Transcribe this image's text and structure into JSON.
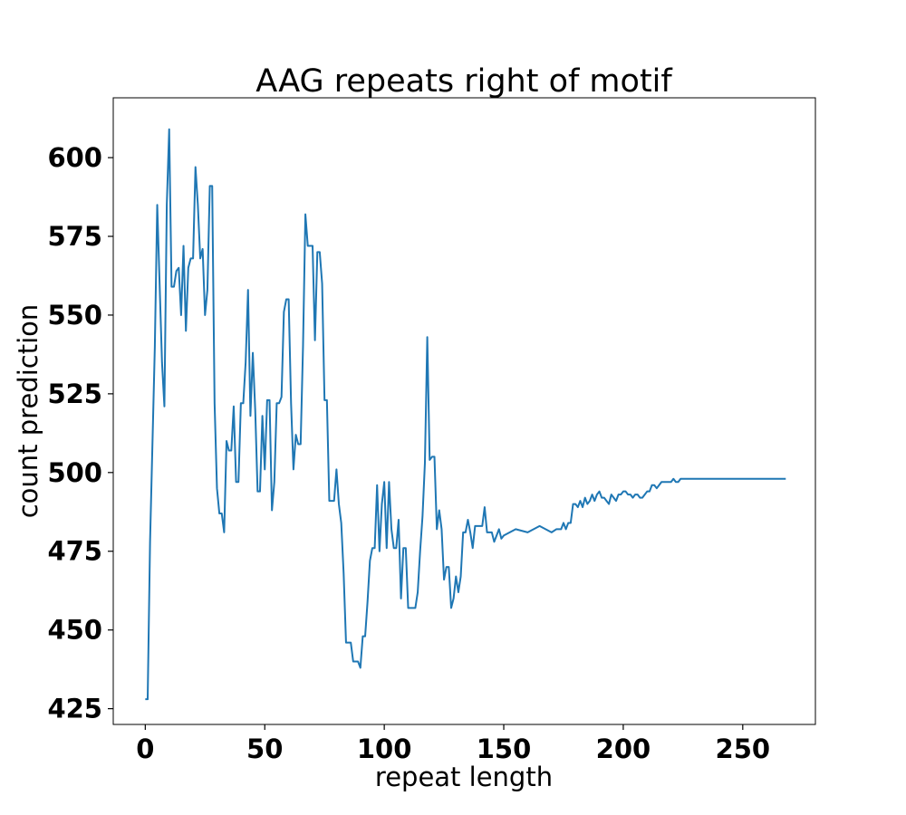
{
  "chart_data": {
    "type": "line",
    "title": "AAG repeats right of motif",
    "xlabel": "repeat length",
    "ylabel": "count prediction",
    "xlim": [
      -13.4,
      280.4
    ],
    "ylim": [
      420,
      619
    ],
    "xticks": [
      0,
      50,
      100,
      150,
      200,
      250
    ],
    "yticks": [
      425,
      450,
      475,
      500,
      525,
      550,
      575,
      600
    ],
    "grid": false,
    "legend": "none",
    "line_color": "#1f77b4",
    "series": [
      {
        "x": [
          0,
          1,
          2,
          4,
          5,
          6,
          7,
          8,
          9,
          10,
          11,
          12,
          13,
          14,
          15,
          16,
          17,
          18,
          19,
          20,
          21,
          22,
          23,
          24,
          25,
          26,
          27,
          28,
          29,
          30,
          31,
          32,
          33,
          34,
          35,
          36,
          37,
          38,
          39,
          40,
          41,
          42,
          43,
          44,
          45,
          46,
          47,
          48,
          49,
          50,
          51,
          52,
          53,
          54,
          55,
          56,
          57,
          58,
          59,
          60,
          61,
          62,
          63,
          64,
          65,
          66,
          67,
          68,
          69,
          70,
          71,
          72,
          73,
          74,
          75,
          76,
          77,
          78,
          79,
          80,
          81,
          82,
          83,
          84,
          85,
          86,
          87,
          88,
          89,
          90,
          91,
          92,
          93,
          94,
          95,
          96,
          97,
          98,
          99,
          100,
          101,
          102,
          103,
          104,
          105,
          106,
          107,
          108,
          109,
          110,
          111,
          112,
          113,
          114,
          115,
          116,
          117,
          118,
          119,
          120,
          121,
          122,
          123,
          124,
          125,
          126,
          127,
          128,
          129,
          130,
          131,
          132,
          133,
          134,
          135,
          136,
          137,
          138,
          139,
          140,
          141,
          142,
          143,
          144,
          145,
          146,
          147,
          148,
          149,
          150,
          155,
          160,
          165,
          170,
          172,
          174,
          175,
          176,
          177,
          178,
          179,
          180,
          181,
          182,
          183,
          184,
          185,
          186,
          187,
          188,
          189,
          190,
          191,
          192,
          193,
          194,
          195,
          196,
          197,
          198,
          199,
          200,
          201,
          202,
          203,
          204,
          205,
          206,
          207,
          208,
          209,
          210,
          211,
          212,
          213,
          214,
          215,
          216,
          217,
          218,
          219,
          220,
          221,
          222,
          223,
          224,
          225,
          226,
          227,
          228,
          229,
          230,
          235,
          240,
          245,
          250,
          255,
          260,
          268
        ],
        "y": [
          428,
          428,
          478,
          540,
          585,
          560,
          535,
          521,
          585,
          609,
          559,
          559,
          564,
          565,
          550,
          572,
          545,
          565,
          568,
          568,
          597,
          585,
          568,
          571,
          550,
          558,
          591,
          591,
          522,
          495,
          487,
          487,
          481,
          510,
          507,
          507,
          521,
          497,
          497,
          522,
          522,
          535,
          558,
          518,
          538,
          520,
          494,
          494,
          518,
          501,
          523,
          523,
          488,
          497,
          522,
          522,
          524,
          551,
          555,
          555,
          522,
          501,
          512,
          509,
          509,
          540,
          582,
          572,
          572,
          572,
          542,
          570,
          570,
          560,
          523,
          523,
          491,
          491,
          491,
          501,
          490,
          484,
          468,
          446,
          446,
          446,
          440,
          440,
          440,
          438,
          448,
          448,
          459,
          472,
          476,
          476,
          496,
          475,
          490,
          497,
          476,
          497,
          482,
          476,
          476,
          485,
          460,
          476,
          476,
          457,
          457,
          457,
          457,
          462,
          475,
          486,
          503,
          543,
          504,
          505,
          505,
          482,
          488,
          482,
          466,
          470,
          470,
          457,
          460,
          467,
          462,
          467,
          481,
          481,
          485,
          481,
          476,
          483,
          483,
          483,
          483,
          489,
          481,
          481,
          481,
          478,
          480,
          482,
          479,
          480,
          482,
          481,
          483,
          481,
          482,
          482,
          484,
          482,
          484,
          484,
          490,
          490,
          489,
          491,
          489,
          492,
          490,
          491,
          493,
          491,
          493,
          494,
          492,
          492,
          491,
          490,
          493,
          492,
          491,
          493,
          493,
          494,
          494,
          493,
          493,
          492,
          493,
          493,
          492,
          492,
          493,
          494,
          494,
          496,
          496,
          495,
          496,
          497,
          497,
          497,
          497,
          497,
          498,
          497,
          497,
          498,
          498,
          498,
          498,
          498,
          498,
          498,
          498,
          498,
          498,
          498,
          498,
          498,
          498
        ]
      }
    ]
  }
}
